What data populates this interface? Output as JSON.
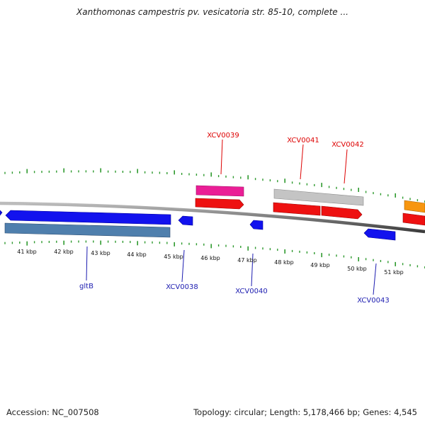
{
  "title": "Xanthomonas campestris pv. vesicatoria str. 85-10, complete ...",
  "footer": {
    "accession": "Accession: NC_007508",
    "topology": "Topology: circular; Length: 5,178,466 bp; Genes: 4,545"
  },
  "colors": {
    "backbone": "#808080",
    "tick": "#2e9a2e",
    "forward_label": "#dd0000",
    "reverse_label": "#1c1cb0",
    "blue_gene": "#1212ee",
    "steel_gene": "#4f7fad",
    "red_gene": "#ee1111",
    "pink_gene": "#ea1e96",
    "gray_gene": "#c4c4c4",
    "orange_gene": "#f7960f"
  },
  "kbp_labels": [
    "41 kbp",
    "42 kbp",
    "43 kbp",
    "44 kbp",
    "45 kbp",
    "46 kbp",
    "47 kbp",
    "48 kbp",
    "49 kbp",
    "50 kbp",
    "51 kbp"
  ],
  "forward_gene_labels": [
    "XCV0039",
    "XCV0041",
    "XCV0042"
  ],
  "reverse_gene_labels": [
    "gltB",
    "XCV0038",
    "XCV0040",
    "XCV0043"
  ]
}
